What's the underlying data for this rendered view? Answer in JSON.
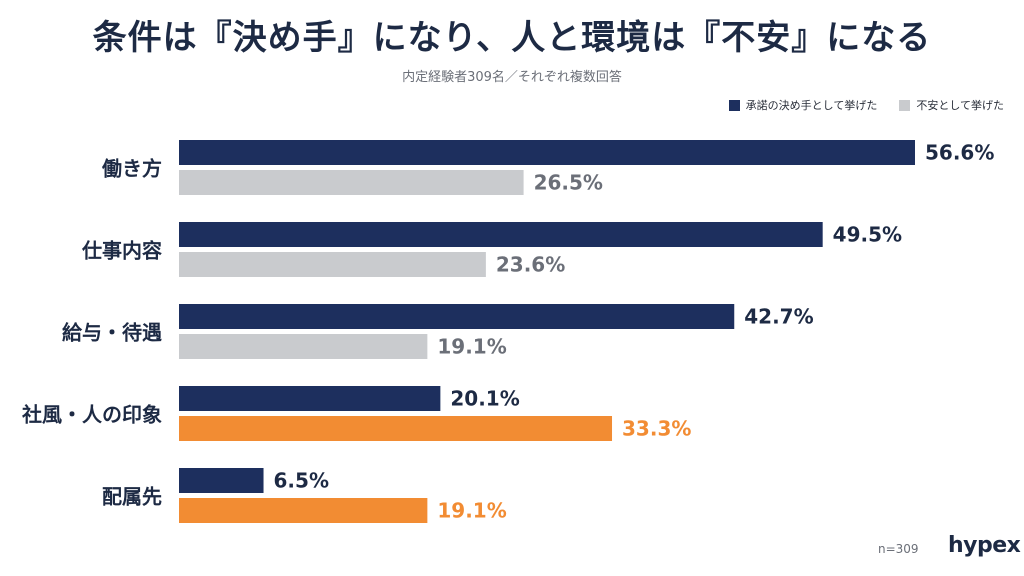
{
  "title": "条件は『決め手』になり、人と環境は『不安』になる",
  "subtitle": "内定経験者309名／それぞれ複数回答",
  "footer": {
    "n_label": "n=309",
    "logo": "hypex"
  },
  "colors": {
    "decision": "#1d2f5e",
    "anxiety_gray": "#c9cbce",
    "anxiety_orange": "#f28c33",
    "orange_text": "#f28c33"
  },
  "chart_data": {
    "type": "bar",
    "orientation": "horizontal",
    "title": "条件は『決め手』になり、人と環境は『不安』になる",
    "subtitle": "内定経験者309名／それぞれ複数回答",
    "categories": [
      "働き方",
      "仕事内容",
      "給与・待遇",
      "社風・人の印象",
      "配属先"
    ],
    "series": [
      {
        "name": "承諾の決め手として挙げた",
        "values": [
          56.6,
          49.5,
          42.7,
          20.1,
          6.5
        ],
        "labels": [
          "56.6%",
          "49.5%",
          "42.7%",
          "20.1%",
          "6.5%"
        ]
      },
      {
        "name": "不安として挙げた",
        "values": [
          26.5,
          23.6,
          19.1,
          33.3,
          19.1
        ],
        "labels": [
          "26.5%",
          "23.6%",
          "19.1%",
          "33.3%",
          "19.1%"
        ],
        "highlight": [
          false,
          false,
          false,
          true,
          true
        ]
      }
    ],
    "xlim": [
      0,
      56.6
    ],
    "legend": "top-right",
    "grid": false
  }
}
